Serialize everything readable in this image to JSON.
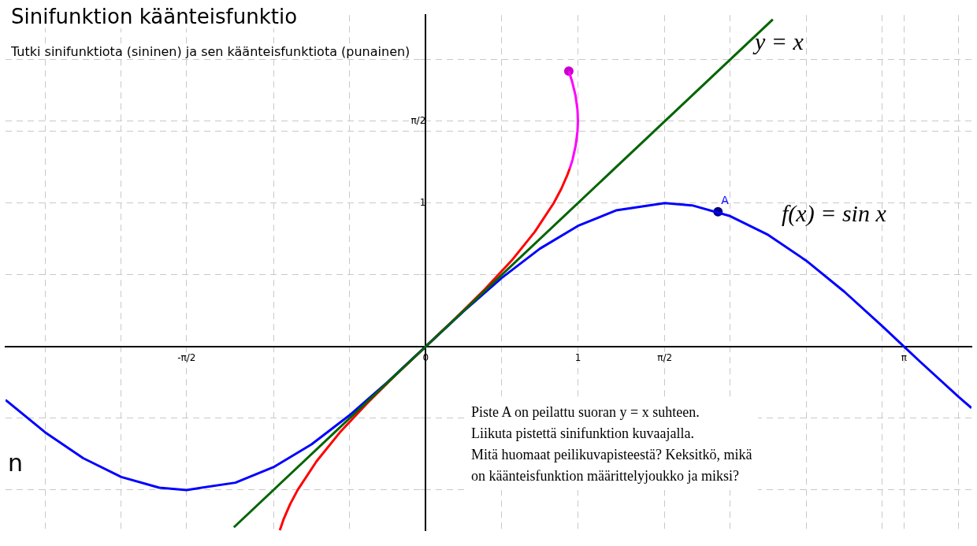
{
  "chart_data": {
    "type": "line",
    "title": "Sinifunktion käänteisfunktio",
    "subtitle": "Tutki sinifunktiota (sininen) ja sen käänteisfunktiota (punainen)",
    "xlim": [
      -2.76,
      3.585
    ],
    "ylim": [
      -1.285,
      2.31
    ],
    "xticks": [
      {
        "value": -2.5,
        "label": null
      },
      {
        "value": -2,
        "label": null
      },
      {
        "value": -1.5708,
        "label": "-π/2"
      },
      {
        "value": -1,
        "label": null
      },
      {
        "value": -0.5,
        "label": null
      },
      0,
      {
        "value": 0.5,
        "label": null
      },
      1,
      {
        "value": 1.5708,
        "label": "π/2"
      },
      {
        "value": 2,
        "label": null
      },
      {
        "value": 2.5,
        "label": null
      },
      {
        "value": 3,
        "label": null
      },
      {
        "value": 3.1416,
        "label": "π"
      },
      {
        "value": 3.5,
        "label": null
      }
    ],
    "yticks": [
      {
        "value": -1,
        "label": null
      },
      {
        "value": -0.5,
        "label": null
      },
      {
        "value": 0,
        "label": null
      },
      {
        "value": 0.5,
        "label": null
      },
      1,
      {
        "value": 1.5,
        "label": null
      },
      {
        "value": 1.5708,
        "label": "π/2"
      },
      {
        "value": 2,
        "label": null
      }
    ],
    "grid": true,
    "legend": false,
    "marker": "none",
    "series": [
      {
        "type": "line",
        "color": "#006400",
        "x": [
          -1.26,
          2.28
        ],
        "values": [
          -1.26,
          2.28
        ]
      },
      {
        "type": "line",
        "color": "#0000ff",
        "x": [
          -2.76,
          -2.5,
          -2.25,
          -2,
          -1.75,
          -1.5708,
          -1.25,
          -1,
          -0.75,
          -0.5,
          -0.25,
          0.25,
          0.5,
          0.75,
          1,
          1.25,
          1.5708,
          1.75,
          2,
          2.25,
          2.5,
          2.75,
          3,
          3.1416,
          3.25,
          3.5,
          3.585
        ],
        "values": [
          -0.372,
          -0.598,
          -0.778,
          -0.909,
          -0.984,
          -1,
          -0.949,
          -0.841,
          -0.682,
          -0.479,
          -0.247,
          0.247,
          0.479,
          0.682,
          0.841,
          0.949,
          1,
          0.984,
          0.909,
          0.778,
          0.598,
          0.382,
          0.141,
          0,
          -0.108,
          -0.351,
          -0.428
        ]
      },
      {
        "type": "line",
        "color": "#ff0000",
        "x": [
          -0.958,
          -0.932,
          -0.891,
          -0.841,
          -0.717,
          -0.565,
          -0.389,
          -0.199,
          0.199,
          0.389,
          0.565,
          0.717,
          0.841,
          0.891,
          0.932,
          0.946
        ],
        "values": [
          -1.28,
          -1.2,
          -1.1,
          -1,
          -0.8,
          -0.6,
          -0.4,
          -0.2,
          0.2,
          0.4,
          0.6,
          0.8,
          1,
          1.1,
          1.2,
          1.24
        ]
      },
      {
        "type": "line",
        "color": "#ff00ff",
        "x": [
          0.946,
          0.964,
          0.985,
          0.997,
          1,
          0.997,
          0.984,
          0.961,
          0.94
        ],
        "values": [
          1.24,
          1.3,
          1.4,
          1.5,
          1.57,
          1.65,
          1.75,
          1.85,
          1.92
        ]
      },
      {
        "type": "scatter",
        "marker": "circle",
        "color": "#cc00cc",
        "x": [
          0.94
        ],
        "values": [
          1.92
        ]
      },
      {
        "type": "scatter",
        "marker": "circle",
        "color": "#000080",
        "x": [
          1.92
        ],
        "values": [
          0.94
        ]
      }
    ],
    "annotations": [
      "y = x",
      "f(x) = sin x",
      {
        "text": "A",
        "x": 1.92,
        "y": 0.94
      },
      "Piste A on peilattu suoran y = x suhteen.\nLiikuta pistettä sinifunktion kuvaajalla.\nMitä huomaat peilikuvapisteestä? Keksitkö, mikä\non käänteisfunktion määrittelyjoukko ja miksi?",
      "n"
    ]
  }
}
